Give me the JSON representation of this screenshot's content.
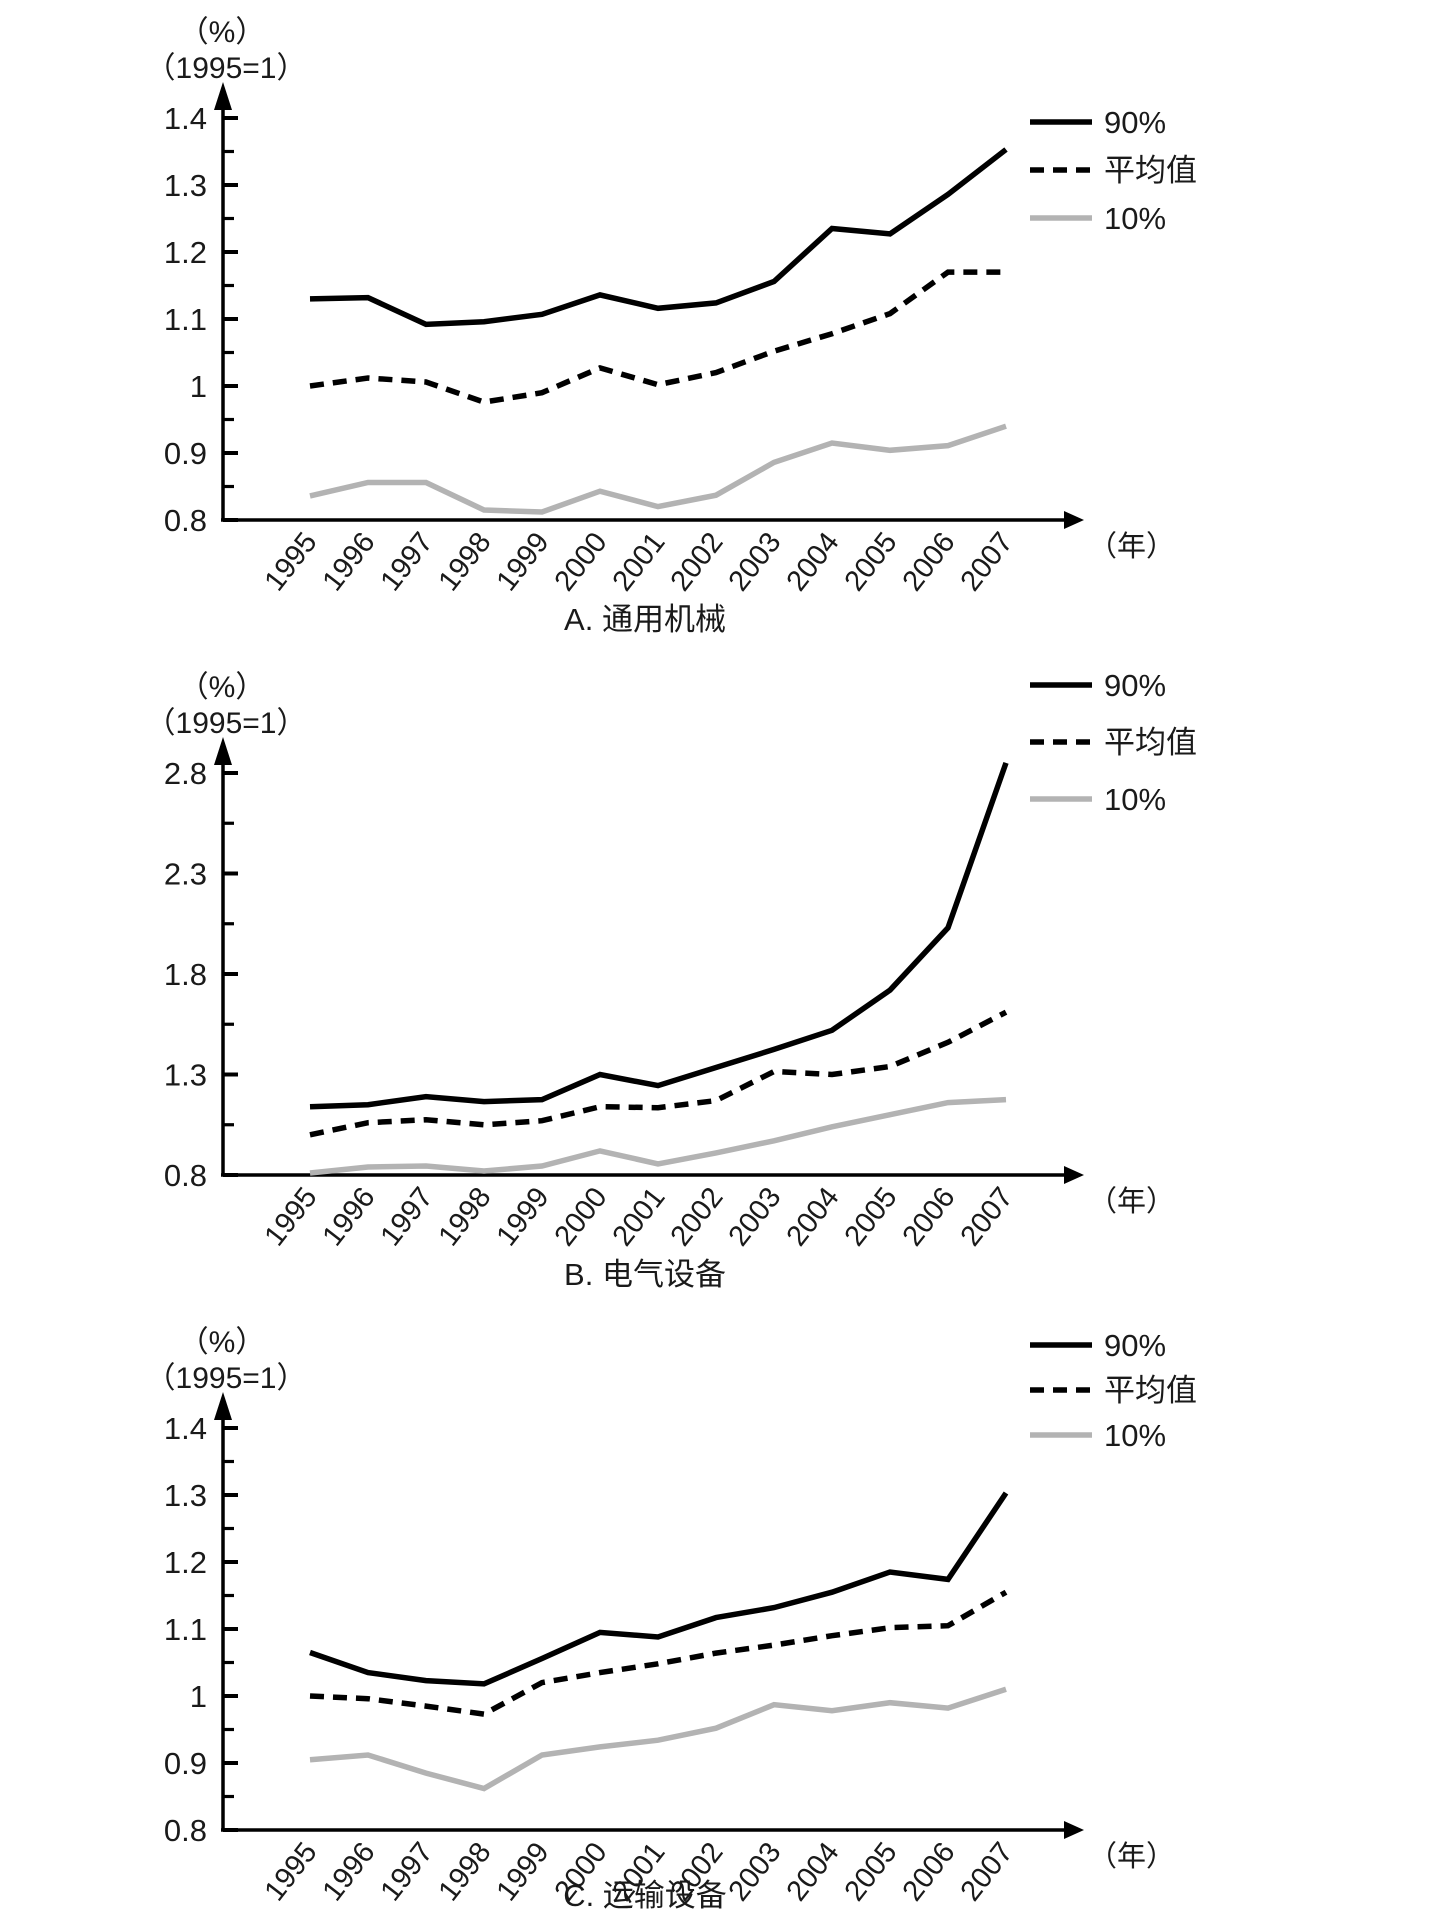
{
  "chart_data": [
    {
      "type": "line",
      "title": "A. 通用机械",
      "percent_label": "（%）",
      "base_label": "（1995=1）",
      "xlabel": "（年）",
      "x": [
        "1995",
        "1996",
        "1997",
        "1998",
        "1999",
        "2000",
        "2001",
        "2002",
        "2003",
        "2004",
        "2005",
        "2006",
        "2007"
      ],
      "y_tick_labels": [
        "1.4",
        "1.3",
        "1.2",
        "1.1",
        "1",
        "0.9",
        "0.8"
      ],
      "ylim": [
        0.8,
        1.4
      ],
      "grid": false,
      "legend_position": "top-right",
      "series": [
        {
          "name": "90%",
          "line_style": "solid",
          "color": "#000000",
          "values": [
            1.13,
            1.132,
            1.092,
            1.096,
            1.107,
            1.136,
            1.116,
            1.124,
            1.156,
            1.235,
            1.227,
            1.286,
            1.353
          ]
        },
        {
          "name": "平均值",
          "line_style": "dashed",
          "color": "#000000",
          "values": [
            1.0,
            1.012,
            1.006,
            0.976,
            0.99,
            1.027,
            1.002,
            1.02,
            1.052,
            1.078,
            1.108,
            1.17,
            1.17
          ]
        },
        {
          "name": "10%",
          "line_style": "solid",
          "color": "#b3b3b3",
          "values": [
            0.836,
            0.856,
            0.856,
            0.815,
            0.812,
            0.843,
            0.82,
            0.837,
            0.886,
            0.915,
            0.904,
            0.911,
            0.94
          ]
        }
      ]
    },
    {
      "type": "line",
      "title": "B. 电气设备",
      "percent_label": "（%）",
      "base_label": "（1995=1）",
      "xlabel": "（年）",
      "x": [
        "1995",
        "1996",
        "1997",
        "1998",
        "1999",
        "2000",
        "2001",
        "2002",
        "2003",
        "2004",
        "2005",
        "2006",
        "2007"
      ],
      "y_tick_labels": [
        "2.8",
        "2.3",
        "1.8",
        "1.3",
        "0.8"
      ],
      "ylim": [
        0.8,
        2.8
      ],
      "grid": false,
      "legend_position": "top-right",
      "series": [
        {
          "name": "90%",
          "line_style": "solid",
          "color": "#000000",
          "values": [
            1.14,
            1.15,
            1.19,
            1.165,
            1.175,
            1.3,
            1.245,
            1.335,
            1.425,
            1.52,
            1.72,
            2.03,
            2.85
          ]
        },
        {
          "name": "平均值",
          "line_style": "dashed",
          "color": "#000000",
          "values": [
            1.0,
            1.06,
            1.075,
            1.05,
            1.07,
            1.14,
            1.135,
            1.17,
            1.315,
            1.3,
            1.34,
            1.46,
            1.61
          ]
        },
        {
          "name": "10%",
          "line_style": "solid",
          "color": "#b3b3b3",
          "values": [
            0.81,
            0.84,
            0.845,
            0.82,
            0.845,
            0.92,
            0.855,
            0.91,
            0.97,
            1.04,
            1.1,
            1.16,
            1.175
          ]
        }
      ]
    },
    {
      "type": "line",
      "title": "C. 运输设备",
      "percent_label": "（%）",
      "base_label": "（1995=1）",
      "xlabel": "（年）",
      "x": [
        "1995",
        "1996",
        "1997",
        "1998",
        "1999",
        "2000",
        "2001",
        "2002",
        "2003",
        "2004",
        "2005",
        "2006",
        "2007"
      ],
      "y_tick_labels": [
        "1.4",
        "1.3",
        "1.2",
        "1.1",
        "1",
        "0.9",
        "0.8"
      ],
      "ylim": [
        0.8,
        1.4
      ],
      "grid": false,
      "legend_position": "top-right",
      "series": [
        {
          "name": "90%",
          "line_style": "solid",
          "color": "#000000",
          "values": [
            1.065,
            1.035,
            1.023,
            1.018,
            1.056,
            1.095,
            1.088,
            1.117,
            1.132,
            1.155,
            1.185,
            1.174,
            1.303
          ]
        },
        {
          "name": "平均值",
          "line_style": "dashed",
          "color": "#000000",
          "values": [
            1.0,
            0.996,
            0.985,
            0.973,
            1.02,
            1.035,
            1.048,
            1.064,
            1.076,
            1.09,
            1.102,
            1.105,
            1.155
          ]
        },
        {
          "name": "10%",
          "line_style": "solid",
          "color": "#b3b3b3",
          "values": [
            0.905,
            0.912,
            0.885,
            0.862,
            0.912,
            0.924,
            0.934,
            0.952,
            0.987,
            0.978,
            0.99,
            0.982,
            1.01
          ]
        }
      ]
    }
  ]
}
